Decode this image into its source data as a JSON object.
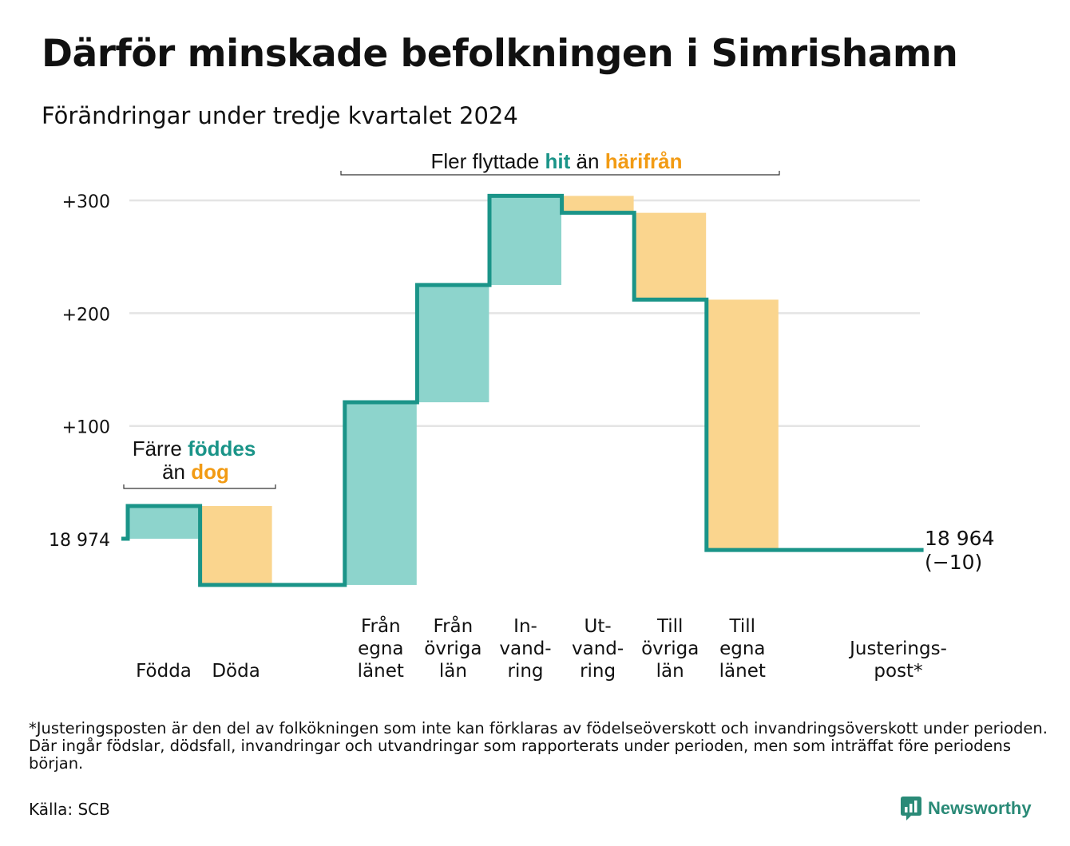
{
  "title": "Därför minskade befolkningen i Simrishamn",
  "subtitle": "Förändringar under tredje kvartalet 2024",
  "colors": {
    "increase": "#8dd4cc",
    "decrease": "#fad58e",
    "line": "#1a9488",
    "hit_text": "#1a9488",
    "harifran_text": "#f29b14",
    "grid": "#e4e4e4"
  },
  "annotations": {
    "migration": {
      "prefix": "Fler flyttade",
      "hit": "hit",
      "middle": "än",
      "harifran": "härifrån"
    },
    "births": {
      "line1_prefix": "Färre",
      "line1_emph": "föddes",
      "line2_prefix": "än",
      "line2_emph": "dog"
    }
  },
  "footnote": "*Justeringsposten är den del av folkökningen som inte kan förklaras av födelseöverskott och invandringsöverskott under perioden. Där ingår födslar, dödsfall, invandringar och utvandringar som rapporterats under perioden, men som inträffat före periodens början.",
  "source": "Källa: SCB",
  "brand": "Newsworthy",
  "chart_data": {
    "type": "waterfall",
    "start_value": 18974,
    "start_label": "18 974",
    "end_value": 18964,
    "end_label": "18 964",
    "end_change_label": "(−10)",
    "y_ticks": [
      {
        "value": 100,
        "label": "+100"
      },
      {
        "value": 200,
        "label": "+200"
      },
      {
        "value": 300,
        "label": "+300"
      }
    ],
    "ylim": [
      -50,
      310
    ],
    "categories": [
      {
        "label": [
          "Födda"
        ],
        "change": 29,
        "kind": "increase"
      },
      {
        "label": [
          "Döda"
        ],
        "change": -70,
        "kind": "decrease"
      },
      {
        "label": [],
        "change": 0,
        "kind": "none"
      },
      {
        "label": [
          "Från",
          "egna",
          "länet"
        ],
        "change": 162,
        "kind": "increase"
      },
      {
        "label": [
          "Från",
          "övriga",
          "län"
        ],
        "change": 104,
        "kind": "increase"
      },
      {
        "label": [
          "In-",
          "vand-",
          "ring"
        ],
        "change": 79,
        "kind": "increase"
      },
      {
        "label": [
          "Ut-",
          "vand-",
          "ring"
        ],
        "change": -15,
        "kind": "decrease"
      },
      {
        "label": [
          "Till",
          "övriga",
          "län"
        ],
        "change": -77,
        "kind": "decrease"
      },
      {
        "label": [
          "Till",
          "egna",
          "länet"
        ],
        "change": -222,
        "kind": "decrease"
      },
      {
        "label": [],
        "change": 0,
        "kind": "none"
      },
      {
        "label": [
          "Justerings-",
          "post*"
        ],
        "change": 0,
        "kind": "none"
      }
    ]
  }
}
